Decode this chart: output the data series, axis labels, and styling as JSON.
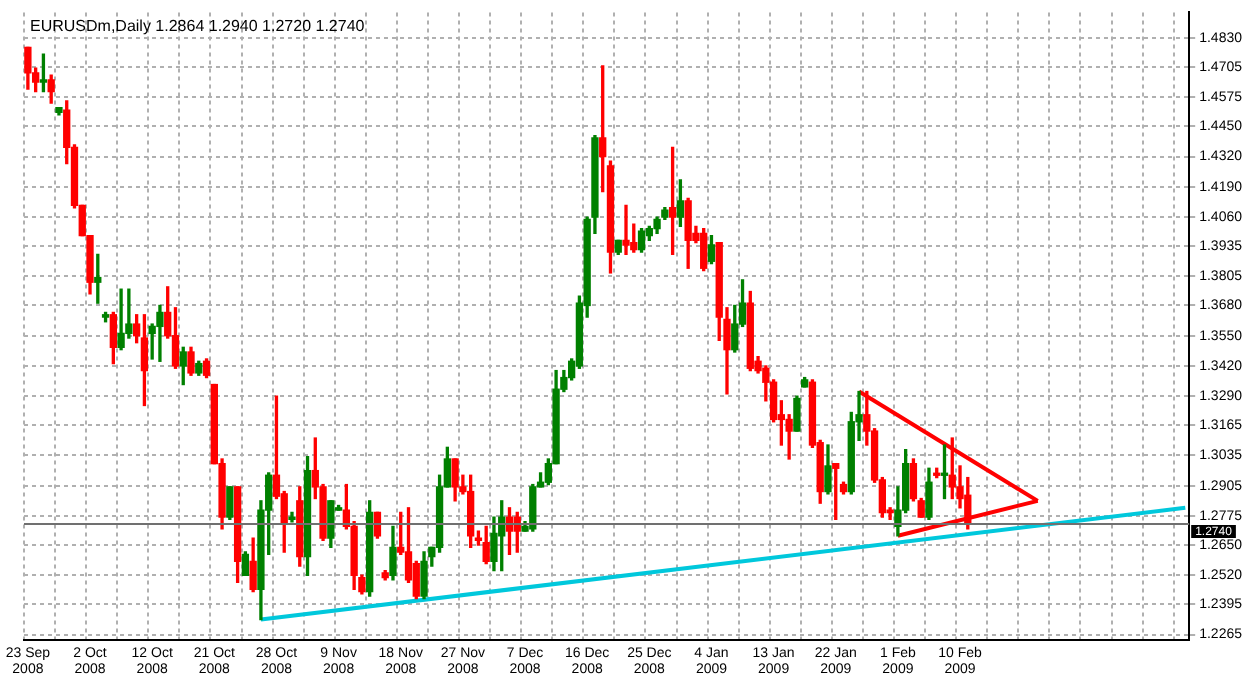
{
  "chart_data": {
    "type": "candlestick",
    "title": "EURUSDm,Daily 1.2864 1.2940 1.2720 1.2740",
    "categories": [
      "23 Sep 2008",
      null,
      null,
      null,
      null,
      null,
      null,
      null,
      "2 Oct 2008",
      null,
      null,
      null,
      null,
      null,
      null,
      null,
      "12 Oct 2008",
      null,
      null,
      null,
      null,
      null,
      null,
      null,
      "21 Oct 2008",
      null,
      null,
      null,
      null,
      null,
      null,
      null,
      "28 Oct 2008",
      null,
      null,
      null,
      null,
      null,
      null,
      null,
      "9 Nov 2008",
      null,
      null,
      null,
      null,
      null,
      null,
      null,
      "18 Nov 2008",
      null,
      null,
      null,
      null,
      null,
      null,
      null,
      "27 Nov 2008",
      null,
      null,
      null,
      null,
      null,
      null,
      null,
      "7 Dec 2008",
      null,
      null,
      null,
      null,
      null,
      null,
      null,
      "16 Dec 2008",
      null,
      null,
      null,
      null,
      null,
      null,
      null,
      "25 Dec 2008",
      null,
      null,
      null,
      null,
      null,
      null,
      null,
      "4 Jan 2009",
      null,
      null,
      null,
      null,
      null,
      null,
      null,
      "13 Jan 2009",
      null,
      null,
      null,
      null,
      null,
      null,
      null,
      "22 Jan 2009",
      null,
      null,
      null,
      null,
      null,
      null,
      null,
      "1 Feb 2009",
      null,
      null,
      null,
      null,
      null,
      null,
      null,
      "10 Feb 2009",
      null,
      null,
      null,
      null,
      null,
      null,
      null,
      null,
      null,
      null,
      null,
      null,
      null,
      null,
      null,
      null,
      null,
      null,
      null,
      null,
      null,
      null,
      null,
      null,
      null,
      null,
      null,
      null,
      null
    ],
    "ohlc": [
      [
        1.479,
        1.479,
        1.461,
        1.468
      ],
      [
        1.468,
        1.47,
        1.46,
        1.464
      ],
      [
        1.464,
        1.476,
        1.46,
        1.465
      ],
      [
        1.465,
        1.467,
        1.455,
        1.46
      ],
      [
        1.451,
        1.453,
        1.45,
        1.453
      ],
      [
        1.452,
        1.456,
        1.429,
        1.436
      ],
      [
        1.436,
        1.437,
        1.41,
        1.411
      ],
      [
        1.411,
        1.411,
        1.398,
        1.398
      ],
      [
        1.398,
        1.398,
        1.373,
        1.378
      ],
      [
        1.378,
        1.39,
        1.369,
        1.38
      ],
      [
        1.363,
        1.365,
        1.361,
        1.364
      ],
      [
        1.364,
        1.365,
        1.343,
        1.35
      ],
      [
        1.35,
        1.375,
        1.349,
        1.356
      ],
      [
        1.356,
        1.375,
        1.354,
        1.36
      ],
      [
        1.36,
        1.364,
        1.352,
        1.355
      ],
      [
        1.354,
        1.364,
        1.325,
        1.34
      ],
      [
        1.356,
        1.36,
        1.345,
        1.359
      ],
      [
        1.359,
        1.368,
        1.344,
        1.365
      ],
      [
        1.365,
        1.376,
        1.354,
        1.355
      ],
      [
        1.355,
        1.367,
        1.341,
        1.342
      ],
      [
        1.342,
        1.35,
        1.334,
        1.348
      ],
      [
        1.348,
        1.35,
        1.338,
        1.339
      ],
      [
        1.339,
        1.344,
        1.338,
        1.343
      ],
      [
        1.344,
        1.345,
        1.337,
        1.338
      ],
      [
        1.334,
        1.334,
        1.3,
        1.3
      ],
      [
        1.3,
        1.302,
        1.272,
        1.277
      ],
      [
        1.277,
        1.29,
        1.276,
        1.29
      ],
      [
        1.29,
        1.29,
        1.249,
        1.258
      ],
      [
        1.252,
        1.262,
        1.252,
        1.261
      ],
      [
        1.258,
        1.268,
        1.245,
        1.246
      ],
      [
        1.246,
        1.284,
        1.233,
        1.28
      ],
      [
        1.28,
        1.296,
        1.261,
        1.295
      ],
      [
        1.295,
        1.329,
        1.285,
        1.286
      ],
      [
        1.287,
        1.288,
        1.262,
        1.274
      ],
      [
        1.276,
        1.279,
        1.275,
        1.277
      ],
      [
        1.284,
        1.29,
        1.256,
        1.26
      ],
      [
        1.26,
        1.303,
        1.252,
        1.297
      ],
      [
        1.297,
        1.311,
        1.285,
        1.29
      ],
      [
        1.29,
        1.291,
        1.267,
        1.268
      ],
      [
        1.268,
        1.284,
        1.264,
        1.284
      ],
      [
        1.28,
        1.282,
        1.28,
        1.281
      ],
      [
        1.28,
        1.291,
        1.272,
        1.273
      ],
      [
        1.273,
        1.275,
        1.246,
        1.252
      ],
      [
        1.251,
        1.252,
        1.244,
        1.245
      ],
      [
        1.245,
        1.284,
        1.243,
        1.279
      ],
      [
        1.279,
        1.279,
        1.268,
        1.269
      ],
      [
        1.253,
        1.254,
        1.25,
        1.251
      ],
      [
        1.252,
        1.273,
        1.25,
        1.264
      ],
      [
        1.264,
        1.279,
        1.261,
        1.262
      ],
      [
        1.262,
        1.281,
        1.249,
        1.25
      ],
      [
        1.257,
        1.258,
        1.242,
        1.243
      ],
      [
        1.243,
        1.262,
        1.242,
        1.258
      ],
      [
        1.26,
        1.264,
        1.256,
        1.264
      ],
      [
        1.264,
        1.295,
        1.262,
        1.29
      ],
      [
        1.29,
        1.307,
        1.29,
        1.302
      ],
      [
        1.302,
        1.302,
        1.284,
        1.29
      ],
      [
        1.29,
        1.295,
        1.287,
        1.288
      ],
      [
        1.288,
        1.295,
        1.264,
        1.269
      ],
      [
        1.268,
        1.271,
        1.265,
        1.267
      ],
      [
        1.266,
        1.273,
        1.257,
        1.258
      ],
      [
        1.258,
        1.277,
        1.254,
        1.27
      ],
      [
        1.269,
        1.284,
        1.254,
        1.277
      ],
      [
        1.277,
        1.281,
        1.261,
        1.271
      ],
      [
        1.277,
        1.279,
        1.262,
        1.271
      ],
      [
        1.271,
        1.275,
        1.271,
        1.273
      ],
      [
        1.272,
        1.291,
        1.271,
        1.29
      ],
      [
        1.29,
        1.296,
        1.29,
        1.292
      ],
      [
        1.292,
        1.302,
        1.291,
        1.3
      ],
      [
        1.3,
        1.34,
        1.3,
        1.332
      ],
      [
        1.332,
        1.34,
        1.331,
        1.337
      ],
      [
        1.337,
        1.345,
        1.336,
        1.344
      ],
      [
        1.342,
        1.372,
        1.341,
        1.369
      ],
      [
        1.368,
        1.406,
        1.363,
        1.405
      ],
      [
        1.406,
        1.441,
        1.399,
        1.44
      ],
      [
        1.44,
        1.471,
        1.417,
        1.432
      ],
      [
        1.428,
        1.43,
        1.382,
        1.391
      ],
      [
        1.391,
        1.396,
        1.39,
        1.396
      ],
      [
        1.396,
        1.411,
        1.39,
        1.394
      ],
      [
        1.395,
        1.403,
        1.391,
        1.392
      ],
      [
        1.392,
        1.401,
        1.391,
        1.4
      ],
      [
        1.398,
        1.402,
        1.396,
        1.401
      ],
      [
        1.401,
        1.406,
        1.399,
        1.405
      ],
      [
        1.406,
        1.41,
        1.405,
        1.409
      ],
      [
        1.41,
        1.436,
        1.39,
        1.406
      ],
      [
        1.406,
        1.422,
        1.402,
        1.413
      ],
      [
        1.413,
        1.414,
        1.384,
        1.396
      ],
      [
        1.399,
        1.402,
        1.395,
        1.396
      ],
      [
        1.399,
        1.401,
        1.383,
        1.384
      ],
      [
        1.387,
        1.398,
        1.386,
        1.394
      ],
      [
        1.395,
        1.395,
        1.353,
        1.363
      ],
      [
        1.362,
        1.367,
        1.33,
        1.349
      ],
      [
        1.349,
        1.368,
        1.348,
        1.36
      ],
      [
        1.36,
        1.379,
        1.359,
        1.369
      ],
      [
        1.369,
        1.374,
        1.34,
        1.341
      ],
      [
        1.344,
        1.346,
        1.339,
        1.34
      ],
      [
        1.341,
        1.342,
        1.327,
        1.335
      ],
      [
        1.335,
        1.336,
        1.318,
        1.319
      ],
      [
        1.321,
        1.327,
        1.308,
        1.319
      ],
      [
        1.319,
        1.321,
        1.302,
        1.314
      ],
      [
        1.314,
        1.329,
        1.314,
        1.328
      ],
      [
        1.333,
        1.337,
        1.333,
        1.336
      ],
      [
        1.335,
        1.336,
        1.307,
        1.308
      ],
      [
        1.309,
        1.31,
        1.283,
        1.288
      ],
      [
        1.288,
        1.308,
        1.287,
        1.299
      ],
      [
        1.3,
        1.3,
        1.276,
        1.298
      ],
      [
        1.291,
        1.292,
        1.287,
        1.288
      ],
      [
        1.288,
        1.322,
        1.287,
        1.318
      ],
      [
        1.318,
        1.331,
        1.31,
        1.321
      ],
      [
        1.321,
        1.331,
        1.308,
        1.314
      ],
      [
        1.314,
        1.315,
        1.292,
        1.293
      ],
      [
        1.293,
        1.294,
        1.277,
        1.279
      ],
      [
        1.28,
        1.281,
        1.276,
        1.279
      ],
      [
        1.273,
        1.29,
        1.269,
        1.28
      ],
      [
        1.28,
        1.306,
        1.279,
        1.3
      ],
      [
        1.3,
        1.302,
        1.284,
        1.285
      ],
      [
        1.284,
        1.285,
        1.277,
        1.277
      ],
      [
        1.277,
        1.298,
        1.276,
        1.292
      ],
      [
        1.295,
        1.298,
        1.294,
        1.295
      ],
      [
        1.295,
        1.308,
        1.285,
        1.295
      ],
      [
        1.295,
        1.311,
        1.285,
        1.29
      ],
      [
        1.29,
        1.299,
        1.281,
        1.285
      ],
      [
        1.2864,
        1.294,
        1.272,
        1.274
      ],
      null,
      null,
      null,
      null,
      null,
      null,
      null,
      null,
      null,
      null,
      null,
      null,
      null,
      null,
      null,
      null,
      null,
      null,
      null,
      null,
      null,
      null,
      null,
      null,
      null,
      null,
      null,
      null
    ],
    "colors": [
      "#ff0000",
      "#ff0000",
      "#008000",
      "#ff0000",
      "#008000",
      "#ff0000",
      "#ff0000",
      "#ff0000",
      "#ff0000",
      "#008000",
      "#008000",
      "#ff0000",
      "#008000",
      "#008000",
      "#ff0000",
      "#ff0000",
      "#008000",
      "#008000",
      "#ff0000",
      "#ff0000",
      "#008000",
      "#ff0000",
      "#008000",
      "#ff0000",
      "#ff0000",
      "#ff0000",
      "#008000",
      "#ff0000",
      "#008000",
      "#ff0000",
      "#008000",
      "#008000",
      "#ff0000",
      "#ff0000",
      "#008000",
      "#ff0000",
      "#008000",
      "#ff0000",
      "#ff0000",
      "#008000",
      "#008000",
      "#ff0000",
      "#ff0000",
      "#ff0000",
      "#008000",
      "#ff0000",
      "#ff0000",
      "#008000",
      "#ff0000",
      "#ff0000",
      "#ff0000",
      "#008000",
      "#008000",
      "#008000",
      "#008000",
      "#ff0000",
      "#ff0000",
      "#ff0000",
      "#ff0000",
      "#ff0000",
      "#008000",
      "#008000",
      "#ff0000",
      "#ff0000",
      "#008000",
      "#008000",
      "#008000",
      "#008000",
      "#008000",
      "#008000",
      "#008000",
      "#008000",
      "#008000",
      "#008000",
      "#ff0000",
      "#ff0000",
      "#008000",
      "#ff0000",
      "#ff0000",
      "#008000",
      "#008000",
      "#008000",
      "#008000",
      "#ff0000",
      "#008000",
      "#ff0000",
      "#ff0000",
      "#ff0000",
      "#008000",
      "#ff0000",
      "#ff0000",
      "#008000",
      "#008000",
      "#ff0000",
      "#ff0000",
      "#ff0000",
      "#ff0000",
      "#ff0000",
      "#ff0000",
      "#008000",
      "#008000",
      "#ff0000",
      "#ff0000",
      "#008000",
      "#ff0000",
      "#ff0000",
      "#008000",
      "#008000",
      "#ff0000",
      "#ff0000",
      "#ff0000",
      "#ff0000",
      "#008000",
      "#008000",
      "#ff0000",
      "#ff0000",
      "#008000",
      "#ff0000",
      "#008000",
      "#ff0000",
      "#ff0000",
      "#ff0000",
      null,
      null,
      null,
      null,
      null,
      null,
      null,
      null,
      null,
      null,
      null,
      null,
      null,
      null,
      null,
      null,
      null,
      null,
      null,
      null,
      null,
      null,
      null,
      null,
      null,
      null,
      null,
      null
    ],
    "series": [
      {
        "type": "line",
        "color": "#00c8dc",
        "values": [
          null,
          null,
          null,
          null,
          null,
          null,
          null,
          null,
          null,
          null,
          null,
          null,
          null,
          null,
          null,
          null,
          null,
          null,
          null,
          null,
          null,
          null,
          null,
          null,
          null,
          null,
          null,
          null,
          null,
          null,
          1.233,
          null,
          null,
          null,
          null,
          null,
          null,
          null,
          null,
          null,
          null,
          null,
          null,
          null,
          null,
          null,
          null,
          null,
          null,
          null,
          null,
          null,
          null,
          null,
          null,
          null,
          null,
          null,
          null,
          null,
          null,
          null,
          null,
          null,
          null,
          null,
          null,
          null,
          null,
          null,
          null,
          null,
          null,
          null,
          null,
          null,
          null,
          null,
          null,
          null,
          null,
          null,
          null,
          null,
          null,
          null,
          null,
          null,
          null,
          null,
          null,
          null,
          null,
          null,
          null,
          null,
          null,
          null,
          null,
          null,
          null,
          null,
          null,
          null,
          null,
          null,
          null,
          null,
          null,
          null,
          null,
          null,
          null,
          null,
          null,
          null,
          null,
          null,
          null,
          null,
          null,
          null,
          null,
          null,
          null,
          null,
          null,
          null,
          null,
          null,
          null,
          null,
          null,
          null,
          null,
          null,
          null,
          null,
          null,
          null,
          null,
          null,
          null,
          null,
          null,
          null,
          null,
          null,
          null,
          1.281
        ]
      },
      {
        "type": "line",
        "color": "#ff0000",
        "values": [
          null,
          null,
          null,
          null,
          null,
          null,
          null,
          null,
          null,
          null,
          null,
          null,
          null,
          null,
          null,
          null,
          null,
          null,
          null,
          null,
          null,
          null,
          null,
          null,
          null,
          null,
          null,
          null,
          null,
          null,
          null,
          null,
          null,
          null,
          null,
          null,
          null,
          null,
          null,
          null,
          null,
          null,
          null,
          null,
          null,
          null,
          null,
          null,
          null,
          null,
          null,
          null,
          null,
          null,
          null,
          null,
          null,
          null,
          null,
          null,
          null,
          null,
          null,
          null,
          null,
          null,
          null,
          null,
          null,
          null,
          null,
          null,
          null,
          null,
          null,
          null,
          null,
          null,
          null,
          null,
          null,
          null,
          null,
          null,
          null,
          null,
          null,
          null,
          null,
          null,
          null,
          null,
          null,
          null,
          null,
          null,
          null,
          null,
          null,
          null,
          null,
          null,
          null,
          null,
          null,
          null,
          null,
          1.331,
          null,
          null,
          null,
          null,
          null,
          null,
          null,
          null,
          null,
          null,
          null,
          null,
          null,
          null,
          null,
          null,
          null,
          null,
          null,
          null,
          null,
          null,
          1.284,
          null,
          null,
          null,
          null,
          null,
          null,
          null,
          null,
          null,
          null,
          null,
          null,
          null,
          null,
          null,
          null,
          null,
          null,
          null
        ]
      },
      {
        "type": "line",
        "color": "#ff0000",
        "values": [
          null,
          null,
          null,
          null,
          null,
          null,
          null,
          null,
          null,
          null,
          null,
          null,
          null,
          null,
          null,
          null,
          null,
          null,
          null,
          null,
          null,
          null,
          null,
          null,
          null,
          null,
          null,
          null,
          null,
          null,
          null,
          null,
          null,
          null,
          null,
          null,
          null,
          null,
          null,
          null,
          null,
          null,
          null,
          null,
          null,
          null,
          null,
          null,
          null,
          null,
          null,
          null,
          null,
          null,
          null,
          null,
          null,
          null,
          null,
          null,
          null,
          null,
          null,
          null,
          null,
          null,
          null,
          null,
          null,
          null,
          null,
          null,
          null,
          null,
          null,
          null,
          null,
          null,
          null,
          null,
          null,
          null,
          null,
          null,
          null,
          null,
          null,
          null,
          null,
          null,
          null,
          null,
          null,
          null,
          null,
          null,
          null,
          null,
          null,
          null,
          null,
          null,
          null,
          null,
          null,
          null,
          null,
          null,
          null,
          null,
          null,
          null,
          1.269,
          null,
          null,
          null,
          null,
          null,
          null,
          null,
          null,
          null,
          null,
          null,
          null,
          null,
          null,
          null,
          null,
          null,
          1.284,
          null,
          null,
          null,
          null,
          null,
          null,
          null,
          null,
          null,
          null,
          null,
          null,
          null,
          null,
          null,
          null,
          null,
          null,
          null
        ]
      }
    ],
    "ylim": [
      1.224,
      1.494
    ],
    "yticks": [
      1.2265,
      1.2395,
      {
        "value": 1.252,
        "label": "1.2520"
      },
      {
        "value": 1.265,
        "label": "1.2650"
      },
      1.2775,
      1.2905,
      1.3035,
      1.3165,
      {
        "value": 1.329,
        "label": "1.3290"
      },
      {
        "value": 1.342,
        "label": "1.3420"
      },
      {
        "value": 1.355,
        "label": "1.3550"
      },
      {
        "value": 1.368,
        "label": "1.3680"
      },
      1.3805,
      1.3935,
      {
        "value": 1.406,
        "label": "1.4060"
      },
      {
        "value": 1.419,
        "label": "1.4190"
      },
      {
        "value": 1.432,
        "label": "1.4320"
      },
      {
        "value": 1.445,
        "label": "1.4450"
      },
      1.4575,
      1.4705,
      {
        "value": 1.483,
        "label": "1.4830"
      }
    ],
    "ref_lines": [
      {
        "axis": "y",
        "value": 1.274,
        "label": "1.2740",
        "color": "#707070"
      }
    ],
    "grid": true,
    "legend": false
  }
}
